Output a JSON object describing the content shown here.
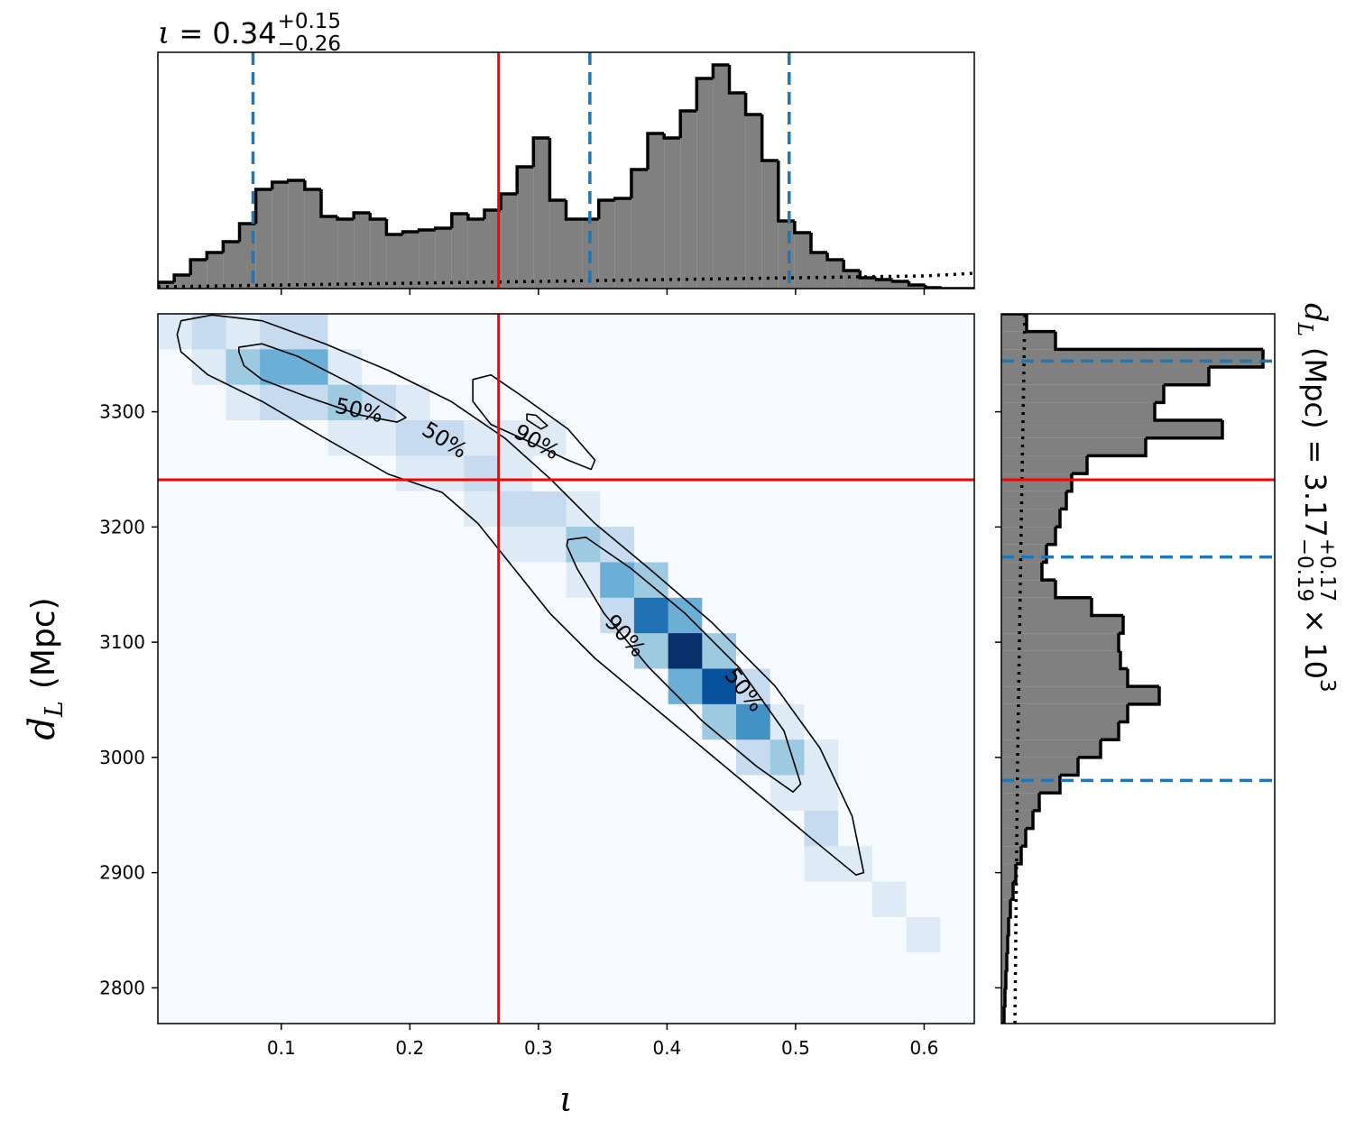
{
  "chart_data": [
    {
      "type": "histogram",
      "title": {
        "symbol": "ι",
        "value": "= 0.34",
        "plus": "+0.15",
        "minus": "−0.26"
      },
      "bins": [
        0.004,
        0.0167,
        0.0294,
        0.0421,
        0.0548,
        0.0675,
        0.0802,
        0.0929,
        0.1056,
        0.1183,
        0.131,
        0.1437,
        0.1564,
        0.1691,
        0.1818,
        0.1945,
        0.2072,
        0.2199,
        0.2326,
        0.2453,
        0.258,
        0.2707,
        0.2834,
        0.2961,
        0.3088,
        0.3215,
        0.3342,
        0.3469,
        0.3596,
        0.3723,
        0.385,
        0.3977,
        0.4104,
        0.4231,
        0.4358,
        0.4485,
        0.4612,
        0.4739,
        0.4866,
        0.4993,
        0.512,
        0.5247,
        0.5374,
        0.5501,
        0.5628,
        0.5755,
        0.5882,
        0.6009,
        0.6136,
        0.6263,
        0.639
      ],
      "values": [
        7,
        15,
        32,
        40,
        52,
        72,
        110,
        118,
        120,
        110,
        80,
        77,
        84,
        77,
        60,
        63,
        65,
        67,
        83,
        77,
        87,
        105,
        135,
        167,
        98,
        77,
        77,
        98,
        100,
        132,
        172,
        167,
        197,
        233,
        248,
        217,
        193,
        142,
        75,
        62,
        40,
        32,
        20,
        12,
        10,
        8,
        4,
        1,
        0,
        0
      ],
      "color": "#808080",
      "prior": {
        "x": [
          0.004,
          0.2,
          0.4,
          0.6,
          0.639
        ],
        "values": [
          2,
          6,
          10,
          14,
          17
        ]
      },
      "quantiles": [
        0.078,
        0.34,
        0.495
      ],
      "truth": 0.269,
      "xlim": [
        0.004,
        0.639
      ],
      "ylim": [
        0,
        262
      ],
      "xticks": [
        0.1,
        0.2,
        0.3,
        0.4,
        0.5,
        0.6
      ]
    },
    {
      "type": "density",
      "xlabel": "ι",
      "ylabel": {
        "symbol": "d",
        "subscript": "L",
        "unit": "(Mpc)"
      },
      "xlim": [
        0.004,
        0.639
      ],
      "ylim": [
        2769,
        3385
      ],
      "xticks": [
        0.1,
        0.2,
        0.3,
        0.4,
        0.5,
        0.6
      ],
      "yticks": [
        2800,
        2900,
        3000,
        3100,
        3200,
        3300
      ],
      "colors": [
        "#f7fbff",
        "#deebf7",
        "#c6dbef",
        "#9ecae1",
        "#6baed6",
        "#4292c6",
        "#2171b5",
        "#08519c",
        "#08306b"
      ],
      "z": [
        [
          1,
          2,
          1,
          2,
          2,
          0,
          0,
          0,
          0,
          0,
          0,
          0,
          0,
          0,
          0,
          0,
          0,
          0,
          0,
          0,
          0,
          0,
          0,
          0
        ],
        [
          0,
          1,
          3,
          4,
          4,
          1,
          0,
          0,
          0,
          0,
          0,
          0,
          0,
          0,
          0,
          0,
          0,
          0,
          0,
          0,
          0,
          0,
          0,
          0
        ],
        [
          0,
          0,
          1,
          2,
          2,
          3,
          2,
          1,
          0,
          0,
          0,
          0,
          0,
          0,
          0,
          0,
          0,
          0,
          0,
          0,
          0,
          0,
          0,
          0
        ],
        [
          0,
          0,
          0,
          0,
          0,
          1,
          1,
          2,
          2,
          1,
          1,
          1,
          0,
          0,
          0,
          0,
          0,
          0,
          0,
          0,
          0,
          0,
          0,
          0
        ],
        [
          0,
          0,
          0,
          0,
          0,
          0,
          0,
          1,
          1,
          2,
          1,
          0,
          0,
          0,
          0,
          0,
          0,
          0,
          0,
          0,
          0,
          0,
          0,
          0
        ],
        [
          0,
          0,
          0,
          0,
          0,
          0,
          0,
          0,
          0,
          1,
          2,
          2,
          1,
          0,
          0,
          0,
          0,
          0,
          0,
          0,
          0,
          0,
          0,
          0
        ],
        [
          0,
          0,
          0,
          0,
          0,
          0,
          0,
          0,
          0,
          0,
          1,
          1,
          3,
          2,
          0,
          0,
          0,
          0,
          0,
          0,
          0,
          0,
          0,
          0
        ],
        [
          0,
          0,
          0,
          0,
          0,
          0,
          0,
          0,
          0,
          0,
          0,
          0,
          1,
          4,
          3,
          0,
          0,
          0,
          0,
          0,
          0,
          0,
          0,
          0
        ],
        [
          0,
          0,
          0,
          0,
          0,
          0,
          0,
          0,
          0,
          0,
          0,
          0,
          0,
          2,
          6,
          4,
          0,
          0,
          0,
          0,
          0,
          0,
          0,
          0
        ],
        [
          0,
          0,
          0,
          0,
          0,
          0,
          0,
          0,
          0,
          0,
          0,
          0,
          0,
          0,
          3,
          8,
          3,
          0,
          0,
          0,
          0,
          0,
          0,
          0
        ],
        [
          0,
          0,
          0,
          0,
          0,
          0,
          0,
          0,
          0,
          0,
          0,
          0,
          0,
          0,
          0,
          4,
          7,
          2,
          0,
          0,
          0,
          0,
          0,
          0
        ],
        [
          0,
          0,
          0,
          0,
          0,
          0,
          0,
          0,
          0,
          0,
          0,
          0,
          0,
          0,
          0,
          0,
          3,
          5,
          1,
          0,
          0,
          0,
          0,
          0
        ],
        [
          0,
          0,
          0,
          0,
          0,
          0,
          0,
          0,
          0,
          0,
          0,
          0,
          0,
          0,
          0,
          0,
          0,
          2,
          3,
          1,
          0,
          0,
          0,
          0
        ],
        [
          0,
          0,
          0,
          0,
          0,
          0,
          0,
          0,
          0,
          0,
          0,
          0,
          0,
          0,
          0,
          0,
          0,
          0,
          1,
          1,
          0,
          0,
          0,
          0
        ],
        [
          0,
          0,
          0,
          0,
          0,
          0,
          0,
          0,
          0,
          0,
          0,
          0,
          0,
          0,
          0,
          0,
          0,
          0,
          0,
          2,
          0,
          0,
          0,
          0
        ],
        [
          0,
          0,
          0,
          0,
          0,
          0,
          0,
          0,
          0,
          0,
          0,
          0,
          0,
          0,
          0,
          0,
          0,
          0,
          0,
          1,
          1,
          0,
          0,
          0
        ],
        [
          0,
          0,
          0,
          0,
          0,
          0,
          0,
          0,
          0,
          0,
          0,
          0,
          0,
          0,
          0,
          0,
          0,
          0,
          0,
          0,
          0,
          1,
          0,
          0
        ],
        [
          0,
          0,
          0,
          0,
          0,
          0,
          0,
          0,
          0,
          0,
          0,
          0,
          0,
          0,
          0,
          0,
          0,
          0,
          0,
          0,
          0,
          0,
          1,
          0
        ],
        [
          0,
          0,
          0,
          0,
          0,
          0,
          0,
          0,
          0,
          0,
          0,
          0,
          0,
          0,
          0,
          0,
          0,
          0,
          0,
          0,
          0,
          0,
          0,
          0
        ],
        [
          0,
          0,
          0,
          0,
          0,
          0,
          0,
          0,
          0,
          0,
          0,
          0,
          0,
          0,
          0,
          0,
          0,
          0,
          0,
          0,
          0,
          0,
          0,
          0
        ]
      ],
      "contours": [
        {
          "x": [
            0.022,
            0.046,
            0.085,
            0.134,
            0.183,
            0.232,
            0.274,
            0.309,
            0.344,
            0.386,
            0.435,
            0.484,
            0.519,
            0.544,
            0.553,
            0.547,
            0.512,
            0.47,
            0.428,
            0.386,
            0.344,
            0.309,
            0.281,
            0.253,
            0.225,
            0.183,
            0.134,
            0.085,
            0.043,
            0.022,
            0.019
          ],
          "y": [
            3379,
            3384,
            3379,
            3359,
            3336,
            3309,
            3277,
            3242,
            3203,
            3164,
            3117,
            3062,
            3008,
            2949,
            2900,
            2898,
            2930,
            2969,
            3008,
            3047,
            3086,
            3125,
            3164,
            3203,
            3230,
            3246,
            3277,
            3309,
            3332,
            3352,
            3367
          ]
        },
        {
          "x": [
            0.067,
            0.085,
            0.113,
            0.155,
            0.19,
            0.197,
            0.19,
            0.162,
            0.12,
            0.085,
            0.071,
            0.067
          ],
          "y": [
            3356,
            3359,
            3348,
            3324,
            3301,
            3295,
            3291,
            3297,
            3313,
            3328,
            3340,
            3352
          ]
        },
        {
          "x": [
            0.249,
            0.263,
            0.288,
            0.323,
            0.344,
            0.341,
            0.323,
            0.295,
            0.263,
            0.249
          ],
          "y": [
            3328,
            3332,
            3313,
            3285,
            3258,
            3250,
            3258,
            3273,
            3289,
            3309
          ]
        },
        {
          "x": [
            0.291,
            0.298,
            0.307,
            0.302,
            0.291
          ],
          "y": [
            3298,
            3297,
            3288,
            3285,
            3293
          ]
        },
        {
          "x": [
            0.323,
            0.337,
            0.372,
            0.414,
            0.456,
            0.491,
            0.504,
            0.498,
            0.47,
            0.428,
            0.386,
            0.351,
            0.33,
            0.322
          ],
          "y": [
            3189,
            3191,
            3164,
            3125,
            3078,
            3023,
            2977,
            2970,
            2992,
            3031,
            3078,
            3125,
            3164,
            3184
          ]
        }
      ],
      "contour_labels": [
        "50%",
        "50%",
        "90%",
        "90%",
        "50%"
      ],
      "truth_x": 0.269,
      "truth_y": 3241
    },
    {
      "type": "histogram",
      "orientation": "horizontal",
      "title": {
        "symbol": "d",
        "subscript": "L",
        "unit": "(Mpc)",
        "value": "= 3.17",
        "plus": "+0.17",
        "minus": "−0.19",
        "times": "× 10",
        "exponent": "3"
      },
      "bins": [
        2769,
        2784.4,
        2799.8,
        2815.2,
        2830.6,
        2846,
        2861.4,
        2876.8,
        2892.2,
        2907.6,
        2923,
        2938.4,
        2953.8,
        2969.2,
        2984.6,
        3000,
        3015.4,
        3030.8,
        3046.2,
        3061.6,
        3077,
        3092.4,
        3107.8,
        3123.2,
        3138.6,
        3154,
        3169.4,
        3184.8,
        3200.2,
        3215.6,
        3231,
        3246.4,
        3261.8,
        3277.2,
        3292.6,
        3308,
        3323.4,
        3338.8,
        3354.2,
        3369.6,
        3385
      ],
      "values": [
        3,
        4,
        5,
        6,
        7,
        8,
        10,
        13,
        16,
        22,
        27,
        35,
        42,
        65,
        85,
        110,
        130,
        140,
        175,
        140,
        132,
        130,
        135,
        100,
        60,
        45,
        50,
        60,
        65,
        72,
        78,
        95,
        160,
        245,
        170,
        180,
        230,
        290,
        60,
        28
      ],
      "color": "#808080",
      "prior": {
        "y": [
          2769,
          3000,
          3200,
          3385
        ],
        "values": [
          15,
          18,
          22,
          26
        ]
      },
      "quantiles": [
        2980,
        3174,
        3344
      ],
      "truth": 3241,
      "xlim": [
        0,
        303
      ],
      "ylim": [
        2769,
        3385
      ],
      "yticks": [
        2800,
        2900,
        3000,
        3100,
        3200,
        3300
      ]
    }
  ]
}
